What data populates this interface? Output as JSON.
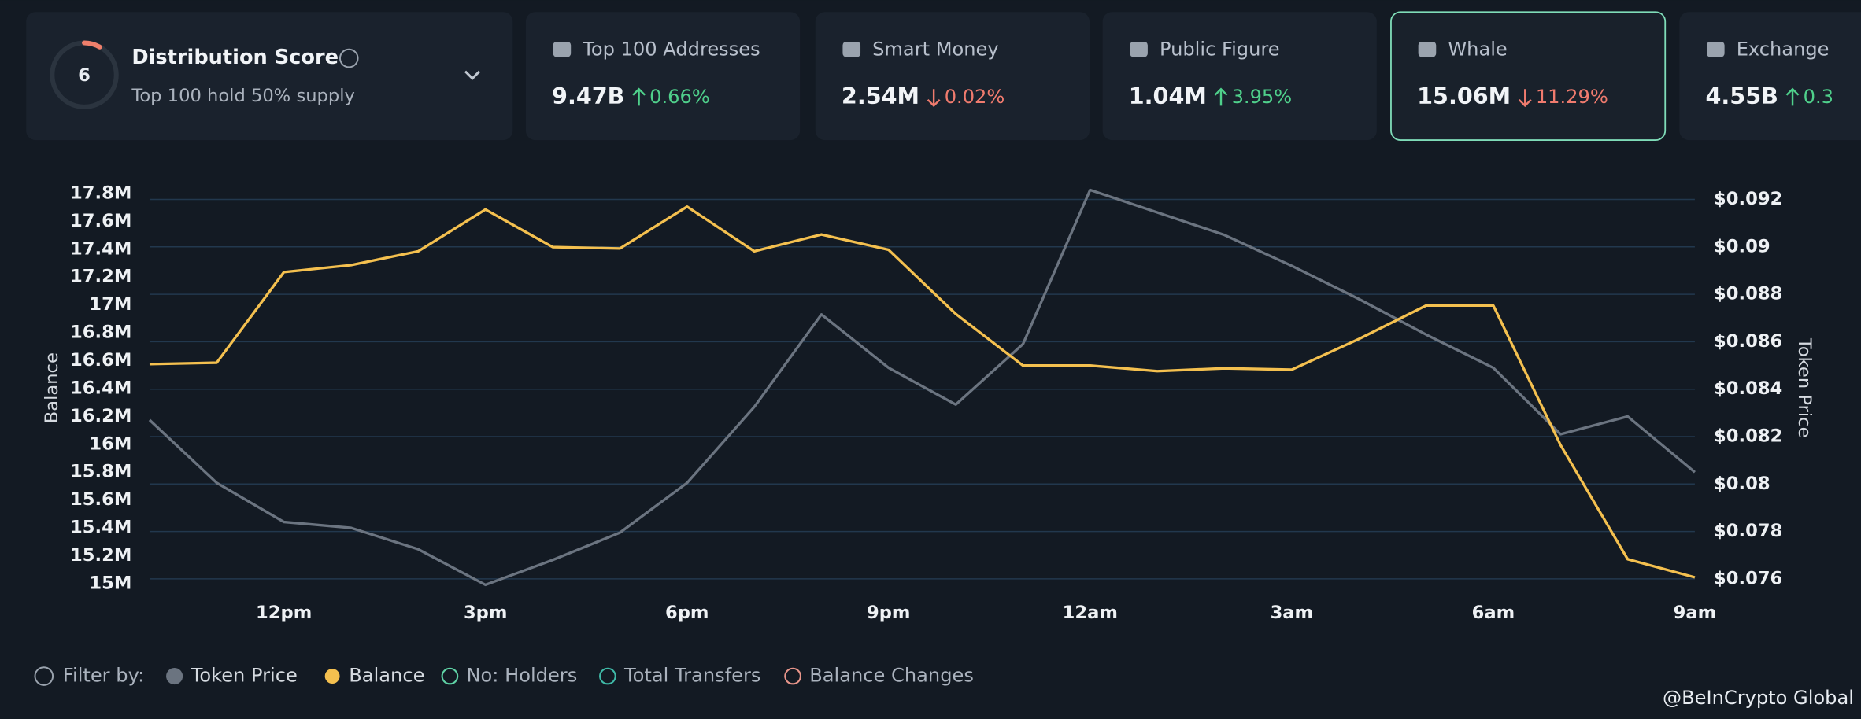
{
  "header": {
    "score": "6",
    "title": "Distribution Score",
    "subtitle": "Top 100 hold 50% supply"
  },
  "cards": [
    {
      "label": "Top 100 Addresses",
      "value": "9.47B",
      "change": "0.66%",
      "direction": "up"
    },
    {
      "label": "Smart Money",
      "value": "2.54M",
      "change": "0.02%",
      "direction": "down"
    },
    {
      "label": "Public Figure",
      "value": "1.04M",
      "change": "3.95%",
      "direction": "up"
    },
    {
      "label": "Whale",
      "value": "15.06M",
      "change": "11.29%",
      "direction": "down",
      "selected": true
    },
    {
      "label": "Exchange",
      "value": "4.55B",
      "change": "0.3",
      "direction": "up"
    }
  ],
  "chart_data": {
    "type": "line",
    "y_label": "Balance",
    "y2_label": "Token Price",
    "categories": [
      null,
      null,
      "12pm",
      null,
      null,
      "3pm",
      null,
      null,
      "6pm",
      null,
      null,
      "9pm",
      null,
      null,
      "12am",
      null,
      null,
      "3am",
      null,
      null,
      "6am",
      null,
      null,
      "9am"
    ],
    "ylim": [
      15,
      17.8
    ],
    "yticks": [
      {
        "value": 15,
        "label": "15M"
      },
      {
        "value": 15.2,
        "label": "15.2M"
      },
      {
        "value": 15.4,
        "label": "15.4M"
      },
      {
        "value": 15.6,
        "label": "15.6M"
      },
      {
        "value": 15.8,
        "label": "15.8M"
      },
      {
        "value": 16,
        "label": "16M"
      },
      {
        "value": 16.2,
        "label": "16.2M"
      },
      {
        "value": 16.4,
        "label": "16.4M"
      },
      {
        "value": 16.6,
        "label": "16.6M"
      },
      {
        "value": 16.8,
        "label": "16.8M"
      },
      {
        "value": 17,
        "label": "17M"
      },
      {
        "value": 17.2,
        "label": "17.2M"
      },
      {
        "value": 17.4,
        "label": "17.4M"
      },
      {
        "value": 17.6,
        "label": "17.6M"
      },
      {
        "value": 17.8,
        "label": "17.8M"
      }
    ],
    "y2lim": [
      0.076,
      0.092
    ],
    "y2ticks": [
      {
        "value": 0.076,
        "label": "$0.076"
      },
      {
        "value": 0.078,
        "label": "$0.078"
      },
      {
        "value": 0.08,
        "label": "$0.08"
      },
      {
        "value": 0.082,
        "label": "$0.082"
      },
      {
        "value": 0.084,
        "label": "$0.084"
      },
      {
        "value": 0.086,
        "label": "$0.086"
      },
      {
        "value": 0.088,
        "label": "$0.088"
      },
      {
        "value": 0.09,
        "label": "$0.09"
      },
      {
        "value": 0.092,
        "label": "$0.092"
      }
    ],
    "grid": true,
    "series": [
      {
        "name": "Token Price",
        "color": "#6b7480",
        "axis": "y2",
        "values": [
          0.0827,
          0.08005,
          0.0784,
          0.07815,
          0.07725,
          0.07575,
          0.0768,
          0.07795,
          0.08005,
          0.08325,
          0.08715,
          0.0849,
          0.08335,
          0.0859,
          0.0924,
          0.09145,
          0.0905,
          0.0892,
          0.0878,
          0.0863,
          0.0849,
          0.0821,
          0.08285,
          0.0805
        ]
      },
      {
        "name": "Balance",
        "color": "#f4c04f",
        "values": [
          16.55,
          16.56,
          17.21,
          17.26,
          17.36,
          17.66,
          17.39,
          17.38,
          17.68,
          17.36,
          17.48,
          17.37,
          16.91,
          16.54,
          16.54,
          16.5,
          16.52,
          16.51,
          16.73,
          16.97,
          16.97,
          15.97,
          15.15,
          15.02
        ]
      }
    ]
  },
  "filter_label": "Filter by:",
  "other_filters": [
    {
      "name": "No: Holders",
      "color": "#5fd3a6"
    },
    {
      "name": "Total Transfers",
      "color": "#3fb9a7"
    },
    {
      "name": "Balance Changes",
      "color": "#e8958a"
    }
  ],
  "watermark": "@BeInCrypto Global"
}
